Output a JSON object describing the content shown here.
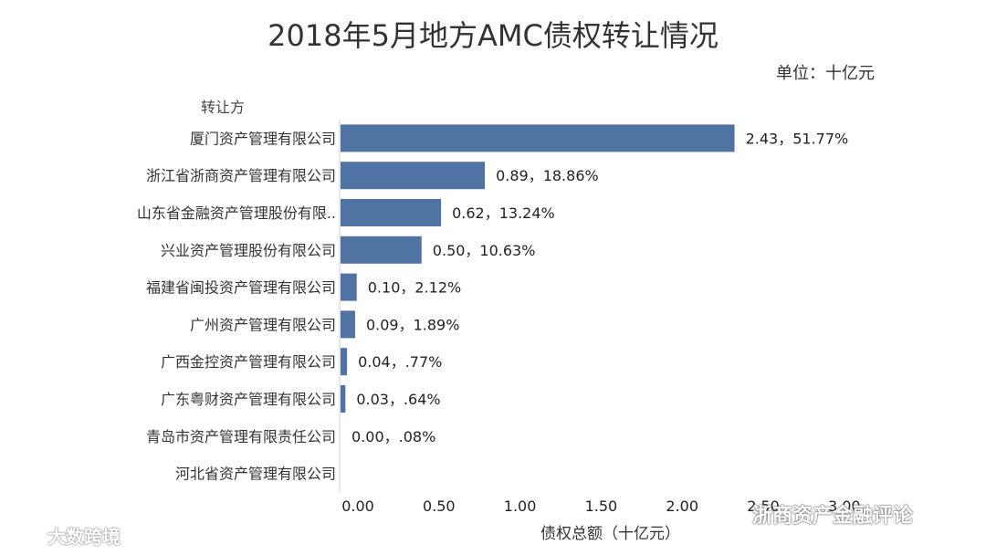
{
  "chart_data": {
    "type": "bar",
    "orientation": "horizontal",
    "title": "2018年5月地方AMC债权转让情况",
    "unit_label": "单位：十亿元",
    "ylabel": "转让方",
    "xlabel": "债权总额（十亿元）",
    "xlim": [
      0,
      3.0
    ],
    "xticks": [
      "0.00",
      "0.50",
      "1.00",
      "1.50",
      "2.00",
      "2.50",
      "3.00"
    ],
    "tick_values": [
      0,
      0.5,
      1.0,
      1.5,
      2.0,
      2.5,
      3.0
    ],
    "categories": [
      "厦门资产管理有限公司",
      "浙江省浙商资产管理有限公司",
      "山东省金融资产管理股份有限..",
      "兴业资产管理股份有限公司",
      "福建省闽投资产管理有限公司",
      "广州资产管理有限公司",
      "广西金控资产管理有限公司",
      "广东粤财资产管理有限公司",
      "青岛市资产管理有限责任公司",
      "河北省资产管理有限公司"
    ],
    "values": [
      2.43,
      0.89,
      0.62,
      0.5,
      0.1,
      0.09,
      0.04,
      0.03,
      0.0,
      null
    ],
    "data_labels": [
      "2.43，51.77%",
      "0.89，18.86%",
      "0.62，13.24%",
      "0.50，10.63%",
      "0.10，2.12%",
      "0.09，1.89%",
      "0.04，.77%",
      "0.03，.64%",
      "0.00，.08%",
      ""
    ],
    "grid": false,
    "bar_color": "#4f73a3"
  },
  "watermarks": {
    "left": "大数跨境",
    "right": "浙商资产金融评论"
  }
}
